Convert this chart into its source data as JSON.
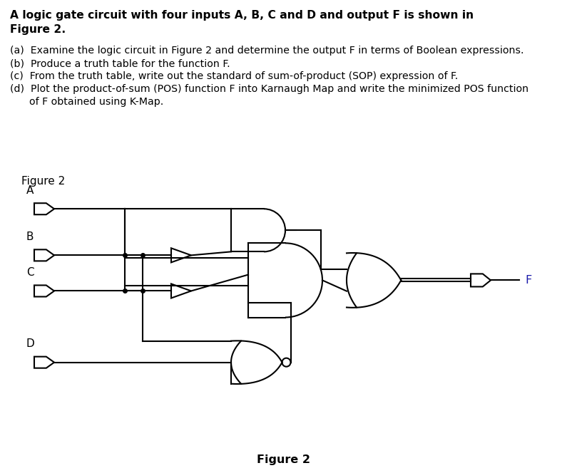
{
  "title_line1": "A logic gate circuit with four inputs A, B, C and D and output F is shown in",
  "title_line2": "Figure 2.",
  "q_a": "(a)  Examine the logic circuit in Figure 2 and determine the output F in terms of Boolean expressions.",
  "q_b": "(b)  Produce a truth table for the function F.",
  "q_c": "(c)  From the truth table, write out the standard of sum-of-product (SOP) expression of F.",
  "q_d1": "(d)  Plot the product-of-sum (POS) function F into Karnaugh Map and write the minimized POS function",
  "q_d2": "      of F obtained using K-Map.",
  "figure_label_top": "Figure 2",
  "figure_label_bottom": "Figure 2",
  "bg_color": "#ffffff",
  "text_color": "#000000",
  "sep_color": "#e8b4b8",
  "blue_color": "#1a1aaa",
  "lw_wire": 1.5,
  "lw_gate": 1.5
}
